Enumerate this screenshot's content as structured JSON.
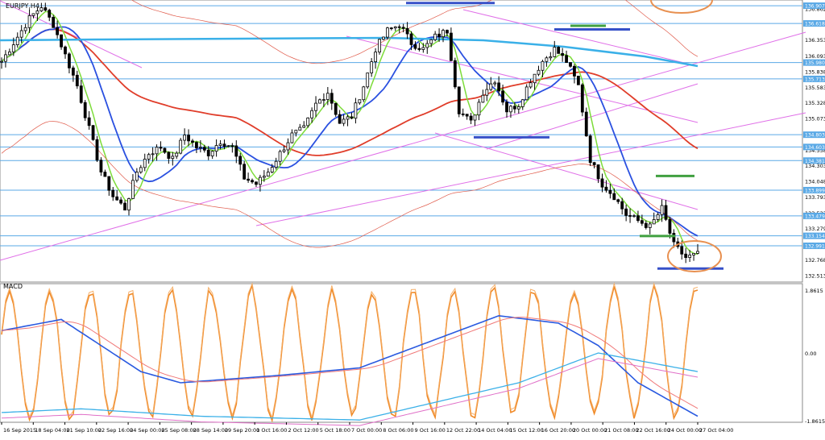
{
  "chart_data": [
    {
      "type": "candlestick",
      "title": "EURJPY,H4",
      "ylim": [
        132.4,
        137.0
      ],
      "price_ticks": [
        136.862,
        136.608,
        136.353,
        136.093,
        135.838,
        135.583,
        135.328,
        135.073,
        134.818,
        134.558,
        134.303,
        134.048,
        133.793,
        133.533,
        133.279,
        133.023,
        132.768,
        132.513
      ],
      "price_tags": [
        {
          "label": "136.907",
          "value": 136.907
        },
        {
          "label": "136.618",
          "value": 136.618
        },
        {
          "label": "135.980",
          "value": 135.98
        },
        {
          "label": "135.713",
          "value": 135.713
        },
        {
          "label": "134.803",
          "value": 134.803
        },
        {
          "label": "134.603",
          "value": 134.603
        },
        {
          "label": "134.381",
          "value": 134.381
        },
        {
          "label": "133.899",
          "value": 133.899
        },
        {
          "label": "133.479",
          "value": 133.479
        },
        {
          "label": "133.154",
          "value": 133.154
        },
        {
          "label": "132.991",
          "value": 132.991
        }
      ],
      "x_labels": [
        "16 Sep 2015",
        "18 Sep 04:00",
        "21 Sep 10:00",
        "22 Sep 16:00",
        "24 Sep 00:00",
        "25 Sep 08:00",
        "28 Sep 14:00",
        "29 Sep 20:00",
        "1 Oct 16:00",
        "2 Oct 12:00",
        "5 Oct 18:00",
        "7 Oct 00:00",
        "8 Oct 06:00",
        "9 Oct 16:00",
        "12 Oct 22:00",
        "14 Oct 04:00",
        "15 Oct 12:00",
        "16 Oct 20:00",
        "20 Oct 00:00",
        "21 Oct 08:00",
        "22 Oct 16:00",
        "24 Oct 00:00",
        "27 Oct 04:00"
      ],
      "close_path": [
        [
          0,
          136.0
        ],
        [
          4,
          136.4
        ],
        [
          7,
          136.7
        ],
        [
          10,
          136.9
        ],
        [
          13,
          136.6
        ],
        [
          16,
          136.1
        ],
        [
          19,
          135.6
        ],
        [
          22,
          134.9
        ],
        [
          25,
          134.2
        ],
        [
          28,
          133.8
        ],
        [
          31,
          133.6
        ],
        [
          34,
          134.2
        ],
        [
          37,
          134.5
        ],
        [
          40,
          134.6
        ],
        [
          43,
          134.4
        ],
        [
          46,
          134.8
        ],
        [
          49,
          134.6
        ],
        [
          52,
          134.5
        ],
        [
          55,
          134.7
        ],
        [
          58,
          134.6
        ],
        [
          61,
          134.1
        ],
        [
          64,
          134.0
        ],
        [
          67,
          134.2
        ],
        [
          70,
          134.5
        ],
        [
          73,
          134.8
        ],
        [
          76,
          134.9
        ],
        [
          79,
          135.3
        ],
        [
          82,
          135.5
        ],
        [
          85,
          135.0
        ],
        [
          88,
          135.1
        ],
        [
          91,
          135.6
        ],
        [
          94,
          136.2
        ],
        [
          97,
          136.5
        ],
        [
          100,
          136.6
        ],
        [
          103,
          136.3
        ],
        [
          106,
          136.2
        ],
        [
          109,
          136.4
        ],
        [
          112,
          136.5
        ],
        [
          115,
          135.2
        ],
        [
          118,
          135.0
        ],
        [
          121,
          135.5
        ],
        [
          124,
          135.7
        ],
        [
          127,
          135.2
        ],
        [
          130,
          135.3
        ],
        [
          133,
          135.7
        ],
        [
          136,
          136.0
        ],
        [
          139,
          136.2
        ],
        [
          142,
          136.0
        ],
        [
          145,
          135.6
        ],
        [
          148,
          134.4
        ],
        [
          151,
          134.0
        ],
        [
          154,
          133.8
        ],
        [
          157,
          133.5
        ],
        [
          160,
          133.4
        ],
        [
          163,
          133.3
        ],
        [
          166,
          133.6
        ],
        [
          169,
          133.0
        ],
        [
          172,
          132.8
        ],
        [
          175,
          132.85
        ]
      ],
      "markers": [
        {
          "type": "resistance",
          "value": 136.95
        },
        {
          "type": "resistance",
          "value": 136.52
        },
        {
          "type": "support",
          "value": 134.76
        },
        {
          "type": "support",
          "value": 132.62
        },
        {
          "type": "target",
          "value": 136.58
        },
        {
          "type": "target",
          "value": 134.13
        },
        {
          "type": "target",
          "value": 133.15
        }
      ]
    },
    {
      "type": "line",
      "title": "MACD",
      "ylim": [
        -1.8615,
        1.8615
      ],
      "y_ticks": [
        "1.8615",
        "0.00",
        "-1.8615"
      ]
    }
  ],
  "colors": {
    "bg": "#ffffff",
    "candle": "#000000",
    "ma_fast": "#7ddc3a",
    "ma_mid": "#2a50e0",
    "ma_slow": "#e03d2a",
    "ma_long": "#3ab0e8",
    "trend": "#e070e8",
    "hline": "#5aa9e6",
    "marker_blue": "#3650c8",
    "marker_green": "#40a040",
    "circle": "#e89050",
    "stoch": "#f08a28",
    "macd_signal": "#2a5ae0"
  }
}
